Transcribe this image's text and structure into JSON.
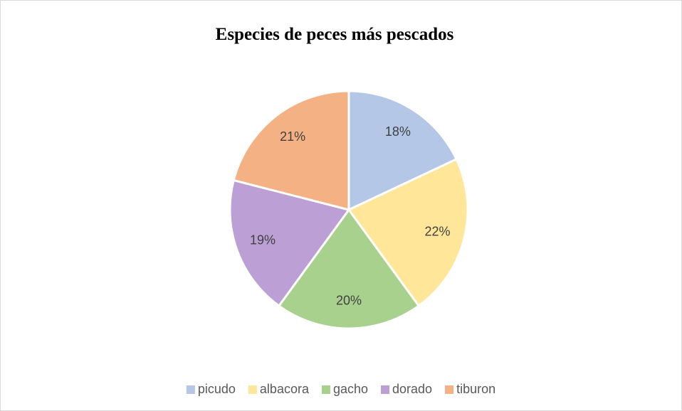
{
  "chart_data": {
    "type": "pie",
    "title": "Especies de peces más pescados",
    "categories": [
      "picudo",
      "albacora",
      "gacho",
      "dorado",
      "tiburon"
    ],
    "values": [
      18,
      22,
      20,
      19,
      21
    ],
    "value_labels": [
      "18%",
      "22%",
      "20%",
      "19%",
      "21%"
    ],
    "colors": [
      "#b4c7e7",
      "#ffe699",
      "#a9d18e",
      "#bc9fd5",
      "#f4b183"
    ],
    "legend": "bottom"
  }
}
